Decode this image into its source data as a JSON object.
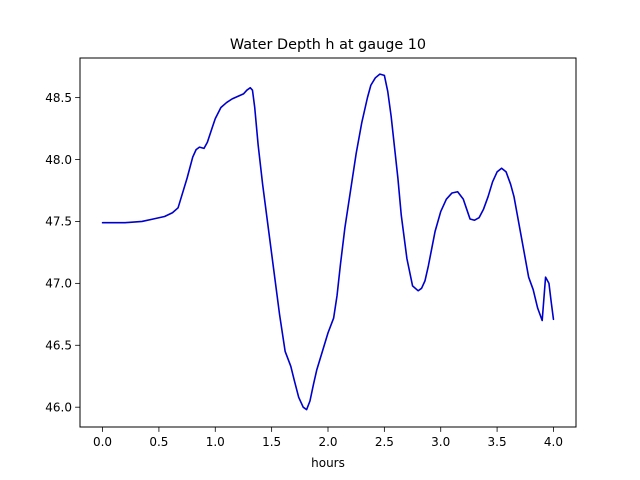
{
  "chart_data": {
    "type": "line",
    "title": "Water Depth h at gauge 10",
    "xlabel": "hours",
    "ylabel": "",
    "xlim": [
      -0.2,
      4.2
    ],
    "ylim": [
      45.84,
      48.82
    ],
    "xticks": [
      0.0,
      0.5,
      1.0,
      1.5,
      2.0,
      2.5,
      3.0,
      3.5,
      4.0
    ],
    "xtick_labels": [
      "0.0",
      "0.5",
      "1.0",
      "1.5",
      "2.0",
      "2.5",
      "3.0",
      "3.5",
      "4.0"
    ],
    "yticks": [
      46.0,
      46.5,
      47.0,
      47.5,
      48.0,
      48.5
    ],
    "ytick_labels": [
      "46.0",
      "46.5",
      "47.0",
      "47.5",
      "48.0",
      "48.5"
    ],
    "grid": false,
    "series": [
      {
        "color": "#0000cc",
        "x": [
          0.0,
          0.2,
          0.35,
          0.45,
          0.55,
          0.62,
          0.67,
          0.7,
          0.75,
          0.8,
          0.83,
          0.86,
          0.9,
          0.93,
          0.97,
          1.0,
          1.05,
          1.1,
          1.15,
          1.2,
          1.25,
          1.28,
          1.31,
          1.33,
          1.35,
          1.38,
          1.42,
          1.47,
          1.52,
          1.57,
          1.62,
          1.67,
          1.7,
          1.74,
          1.78,
          1.81,
          1.84,
          1.87,
          1.9,
          1.95,
          2.0,
          2.05,
          2.08,
          2.11,
          2.15,
          2.2,
          2.25,
          2.3,
          2.35,
          2.38,
          2.42,
          2.46,
          2.5,
          2.53,
          2.56,
          2.59,
          2.62,
          2.65,
          2.7,
          2.75,
          2.8,
          2.83,
          2.86,
          2.89,
          2.92,
          2.95,
          3.0,
          3.05,
          3.1,
          3.15,
          3.2,
          3.23,
          3.26,
          3.3,
          3.34,
          3.38,
          3.42,
          3.46,
          3.5,
          3.54,
          3.58,
          3.62,
          3.65,
          3.68,
          3.71,
          3.74,
          3.78,
          3.82,
          3.86,
          3.9,
          3.93,
          3.96,
          3.98,
          4.0
        ],
        "values": [
          47.49,
          47.49,
          47.5,
          47.52,
          47.54,
          47.57,
          47.61,
          47.7,
          47.85,
          48.02,
          48.08,
          48.1,
          48.09,
          48.14,
          48.25,
          48.33,
          48.42,
          48.46,
          48.49,
          48.51,
          48.53,
          48.56,
          48.58,
          48.56,
          48.42,
          48.12,
          47.8,
          47.45,
          47.1,
          46.75,
          46.45,
          46.33,
          46.22,
          46.08,
          46.0,
          45.98,
          46.05,
          46.18,
          46.3,
          46.45,
          46.6,
          46.72,
          46.9,
          47.15,
          47.45,
          47.75,
          48.05,
          48.3,
          48.5,
          48.6,
          48.66,
          48.69,
          48.68,
          48.55,
          48.35,
          48.1,
          47.85,
          47.55,
          47.2,
          46.98,
          46.94,
          46.96,
          47.02,
          47.14,
          47.28,
          47.42,
          47.58,
          47.68,
          47.73,
          47.74,
          47.68,
          47.6,
          47.52,
          47.51,
          47.53,
          47.6,
          47.7,
          47.82,
          47.9,
          47.93,
          47.9,
          47.8,
          47.7,
          47.55,
          47.4,
          47.25,
          47.05,
          46.95,
          46.8,
          46.7,
          47.05,
          47.0,
          46.85,
          46.71
        ]
      }
    ]
  }
}
